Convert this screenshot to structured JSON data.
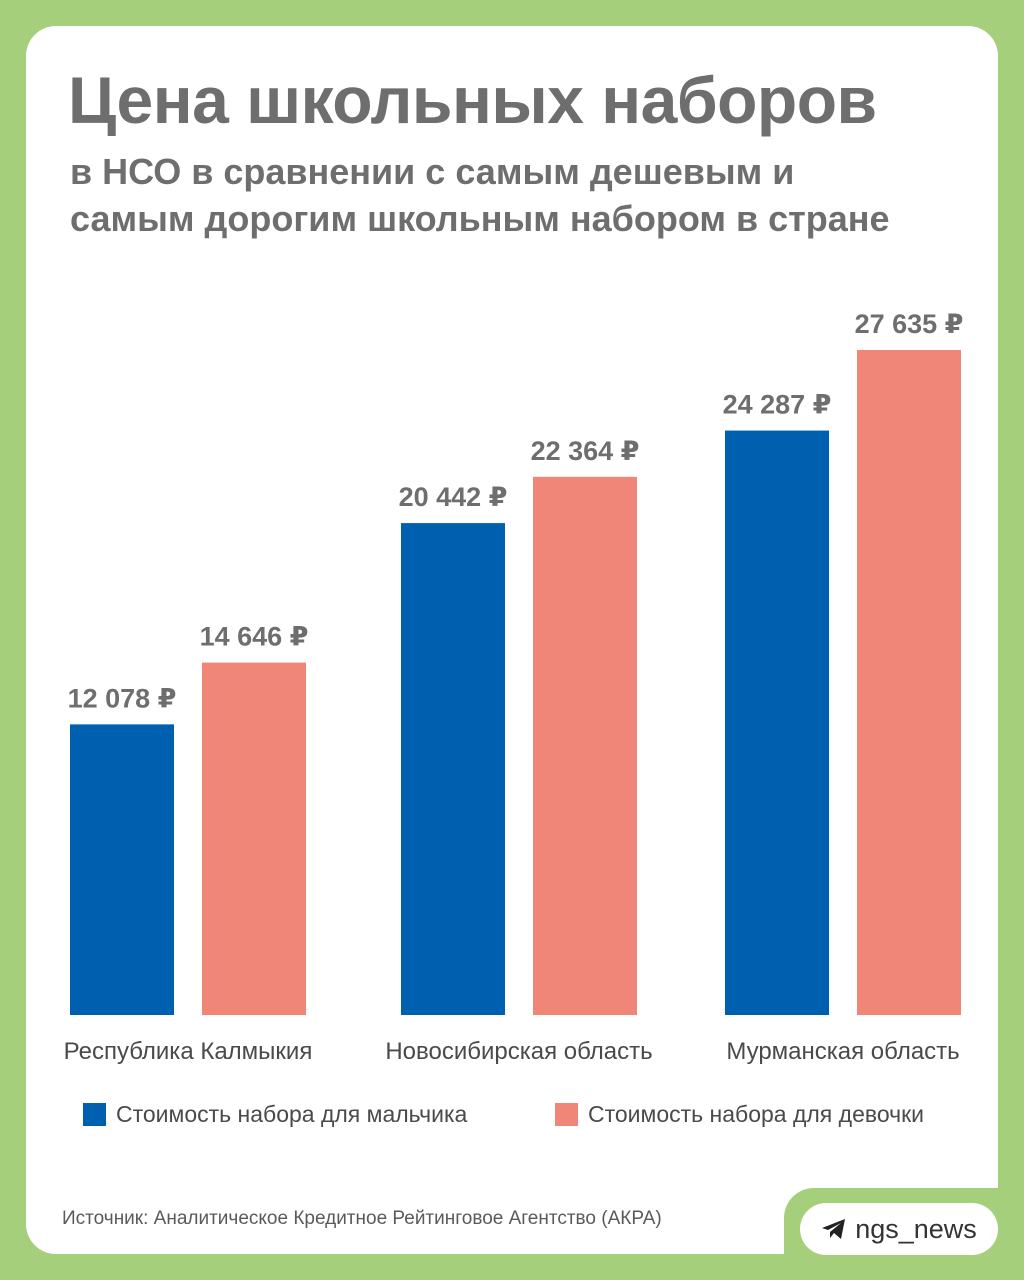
{
  "title": "Цена школьных наборов",
  "subtitle": "в НСО в сравнении с самым дешевым и самым дорогим школьным набором в стране",
  "source": "Источник: Аналитическое Кредитное Рейтинговое Агентство (АКРА)",
  "brand": {
    "handle": "ngs_news",
    "icon": "telegram-plane-icon"
  },
  "colors": {
    "background": "#a5cf7b",
    "boy": "#0060b0",
    "girl": "#f08678"
  },
  "chart_data": {
    "type": "bar",
    "categories": [
      "Республика Калмыкия",
      "Новосибирская область",
      "Мурманская область"
    ],
    "series": [
      {
        "name": "Стоимость набора для мальчика",
        "values": [
          12078,
          20442,
          24287
        ],
        "labels": [
          "12 078 ₽",
          "20 442 ₽",
          "24 287 ₽"
        ],
        "color": "#0060b0"
      },
      {
        "name": "Стоимость набора для девочки",
        "values": [
          14646,
          22364,
          27635
        ],
        "labels": [
          "14 646 ₽",
          "22 364 ₽",
          "27 635 ₽"
        ],
        "color": "#f08678"
      }
    ],
    "ylim": [
      0,
      27635
    ],
    "grid": false,
    "legend": "bottom"
  }
}
